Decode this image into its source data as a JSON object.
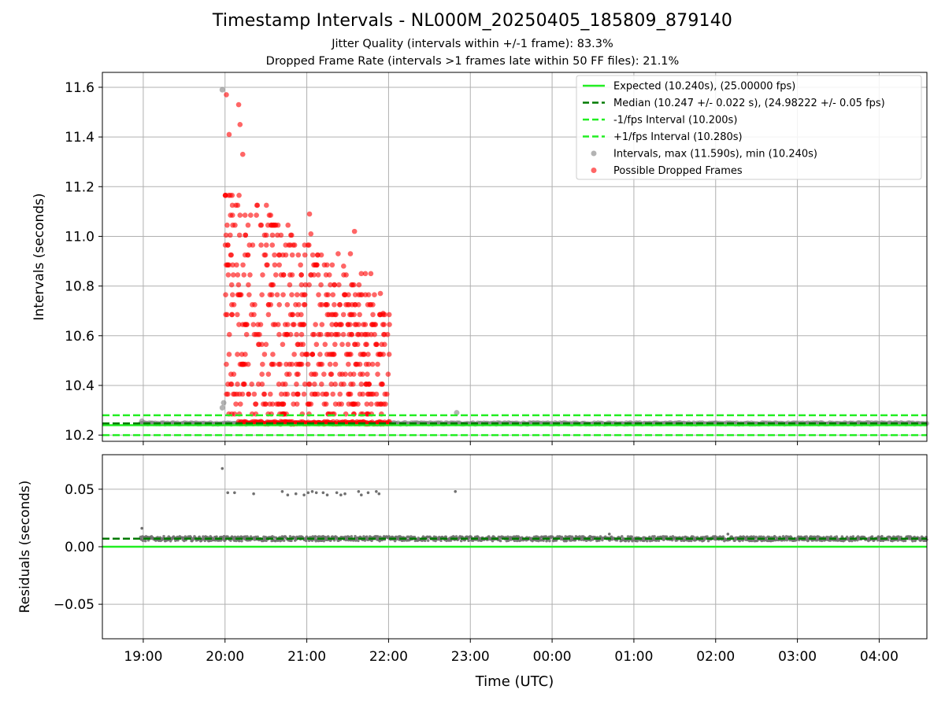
{
  "chart_data": [
    {
      "type": "scatter",
      "title": "Timestamp Intervals - NL000M_20250405_185809_879140",
      "subtitle_lines": [
        "Jitter Quality (intervals within +/-1 frame): 83.3%",
        "Dropped Frame Rate (intervals >1 frames late within 50 FF files): 21.1%"
      ],
      "ylabel": "Intervals (seconds)",
      "xlabel": "",
      "ylim": [
        10.175,
        11.66
      ],
      "xlim": [
        "18:30",
        "04:35"
      ],
      "yticks": [
        "10.2",
        "10.4",
        "10.6",
        "10.8",
        "11.0",
        "11.2",
        "11.4",
        "11.6"
      ],
      "grid": true,
      "legend_position": "top-right",
      "reference_lines": [
        {
          "name": "Expected (10.240s), (25.00000 fps)",
          "y": 10.24,
          "style": "solid",
          "color": "#22ee22"
        },
        {
          "name": "Median (10.247 +/- 0.022 s), (24.98222 +/- 0.05 fps)",
          "y": 10.247,
          "style": "dashed",
          "color": "#007a00"
        },
        {
          "name": "-1/fps Interval (10.200s)",
          "y": 10.2,
          "style": "dashed",
          "color": "#22ee22"
        },
        {
          "name": "+1/fps Interval (10.280s)",
          "y": 10.28,
          "style": "dashed",
          "color": "#22ee22"
        }
      ],
      "series": [
        {
          "name": "Intervals, max (11.590s), min (10.240s)",
          "color": "#808080",
          "points": [
            [
              "18:59",
              10.256
            ],
            [
              "19:58",
              11.59
            ],
            [
              "19:58",
              10.31
            ],
            [
              "19:59",
              10.33
            ],
            [
              "22:50",
              10.29
            ]
          ],
          "baseline": {
            "from": "18:58",
            "to": "04:35",
            "value": 10.247
          }
        },
        {
          "name": "Possible Dropped Frames",
          "color": "#ff0000",
          "cluster": {
            "from": "19:58",
            "to": "22:01",
            "min": 10.24,
            "max": 11.57
          },
          "points": [
            [
              "20:01",
              11.57
            ],
            [
              "20:10",
              11.53
            ],
            [
              "20:11",
              11.45
            ],
            [
              "20:03",
              11.41
            ],
            [
              "20:13",
              11.33
            ],
            [
              "21:02",
              11.09
            ],
            [
              "21:35",
              11.02
            ],
            [
              "21:03",
              11.01
            ],
            [
              "21:23",
              10.93
            ],
            [
              "21:27",
              10.88
            ],
            [
              "21:32",
              10.93
            ],
            [
              "21:40",
              10.85
            ],
            [
              "21:43",
              10.85
            ],
            [
              "21:47",
              10.85
            ],
            [
              "21:54",
              10.77
            ],
            [
              "21:56",
              10.69
            ]
          ]
        }
      ]
    },
    {
      "type": "scatter",
      "title": "",
      "ylabel": "Residuals (seconds)",
      "xlabel": "Time (UTC)",
      "ylim": [
        -0.08,
        0.08
      ],
      "xlim": [
        "18:30",
        "04:35"
      ],
      "yticks": [
        "−0.05",
        "0.00",
        "0.05"
      ],
      "xticks": [
        "19:00",
        "20:00",
        "21:00",
        "22:00",
        "23:00",
        "00:00",
        "01:00",
        "02:00",
        "03:00",
        "04:00"
      ],
      "grid": true,
      "reference_lines": [
        {
          "y": 0.0,
          "style": "solid",
          "color": "#22ee22"
        },
        {
          "y": 0.007,
          "style": "dashed",
          "color": "#007a00"
        }
      ],
      "series": [
        {
          "color": "#707070",
          "points": [
            [
              "18:59",
              0.016
            ],
            [
              "19:58",
              0.068
            ],
            [
              "20:02",
              0.047
            ],
            [
              "20:07",
              0.047
            ],
            [
              "20:21",
              0.046
            ],
            [
              "20:42",
              0.048
            ],
            [
              "20:46",
              0.045
            ],
            [
              "20:52",
              0.046
            ],
            [
              "20:58",
              0.045
            ],
            [
              "21:01",
              0.047
            ],
            [
              "21:04",
              0.048
            ],
            [
              "21:07",
              0.047
            ],
            [
              "21:12",
              0.047
            ],
            [
              "21:15",
              0.045
            ],
            [
              "21:22",
              0.047
            ],
            [
              "21:25",
              0.045
            ],
            [
              "21:28",
              0.046
            ],
            [
              "21:38",
              0.048
            ],
            [
              "21:40",
              0.045
            ],
            [
              "21:45",
              0.047
            ],
            [
              "21:51",
              0.048
            ],
            [
              "21:53",
              0.046
            ],
            [
              "22:49",
              0.048
            ],
            [
              "00:42",
              0.011
            ],
            [
              "02:09",
              0.011
            ]
          ],
          "baseline": {
            "from": "18:58",
            "to": "04:35",
            "value": 0.007,
            "spread": 0.004
          }
        }
      ]
    }
  ]
}
